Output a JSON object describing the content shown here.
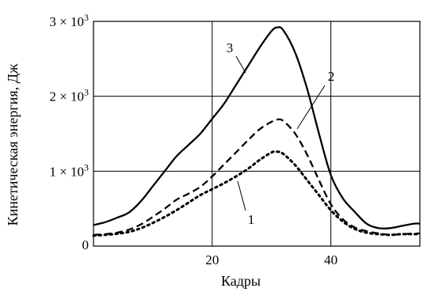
{
  "chart_data": {
    "type": "line",
    "title": "",
    "xlabel": "Кадры",
    "ylabel": "Кинетическая энергия, Дж",
    "xlim": [
      0,
      55
    ],
    "ylim": [
      0,
      3000
    ],
    "grid": true,
    "x_ticks": [
      {
        "value": 20,
        "label": "20"
      },
      {
        "value": 40,
        "label": "40"
      }
    ],
    "y_ticks": [
      {
        "value": 0,
        "label": "0",
        "mantissa": "0",
        "exponent": ""
      },
      {
        "value": 1000,
        "label": "1 × 10³",
        "mantissa": "1 × 10",
        "exponent": "3"
      },
      {
        "value": 2000,
        "label": "2 × 10³",
        "mantissa": "2 × 10",
        "exponent": "3"
      },
      {
        "value": 3000,
        "label": "3 × 10³",
        "mantissa": "3 × 10",
        "exponent": "3"
      }
    ],
    "series": [
      {
        "label": "1",
        "style": "dotted",
        "color": "#000000",
        "x": [
          0,
          2,
          4,
          6,
          8,
          10,
          12,
          14,
          16,
          18,
          20,
          22,
          24,
          26,
          28,
          30,
          31,
          32,
          34,
          36,
          38,
          40,
          42,
          44,
          46,
          48,
          50,
          52,
          55
        ],
        "y": [
          140,
          150,
          165,
          190,
          240,
          310,
          390,
          480,
          580,
          680,
          760,
          840,
          930,
          1030,
          1150,
          1250,
          1260,
          1230,
          1080,
          880,
          680,
          480,
          330,
          230,
          180,
          160,
          150,
          160,
          160
        ]
      },
      {
        "label": "2",
        "style": "dashed",
        "color": "#000000",
        "x": [
          0,
          2,
          4,
          6,
          8,
          10,
          12,
          14,
          16,
          18,
          20,
          22,
          24,
          26,
          28,
          30,
          31,
          32,
          34,
          36,
          38,
          40,
          42,
          44,
          46,
          48,
          50,
          52,
          55
        ],
        "y": [
          150,
          160,
          180,
          220,
          290,
          390,
          500,
          620,
          700,
          790,
          930,
          1090,
          1250,
          1410,
          1560,
          1660,
          1690,
          1670,
          1500,
          1220,
          880,
          560,
          360,
          250,
          200,
          170,
          150,
          160,
          170
        ]
      },
      {
        "label": "3",
        "style": "solid",
        "color": "#000000",
        "x": [
          0,
          2,
          4,
          6,
          8,
          10,
          12,
          14,
          16,
          18,
          20,
          22,
          24,
          26,
          28,
          30,
          31,
          32,
          34,
          36,
          38,
          40,
          42,
          44,
          46,
          48,
          50,
          52,
          54,
          55
        ],
        "y": [
          280,
          320,
          380,
          450,
          600,
          800,
          1000,
          1200,
          1350,
          1500,
          1700,
          1900,
          2150,
          2400,
          2650,
          2870,
          2920,
          2880,
          2580,
          2100,
          1500,
          950,
          640,
          460,
          300,
          240,
          240,
          270,
          300,
          300
        ]
      }
    ],
    "annotations": [
      {
        "text": "1",
        "series": "1"
      },
      {
        "text": "2",
        "series": "2"
      },
      {
        "text": "3",
        "series": "3"
      }
    ]
  }
}
